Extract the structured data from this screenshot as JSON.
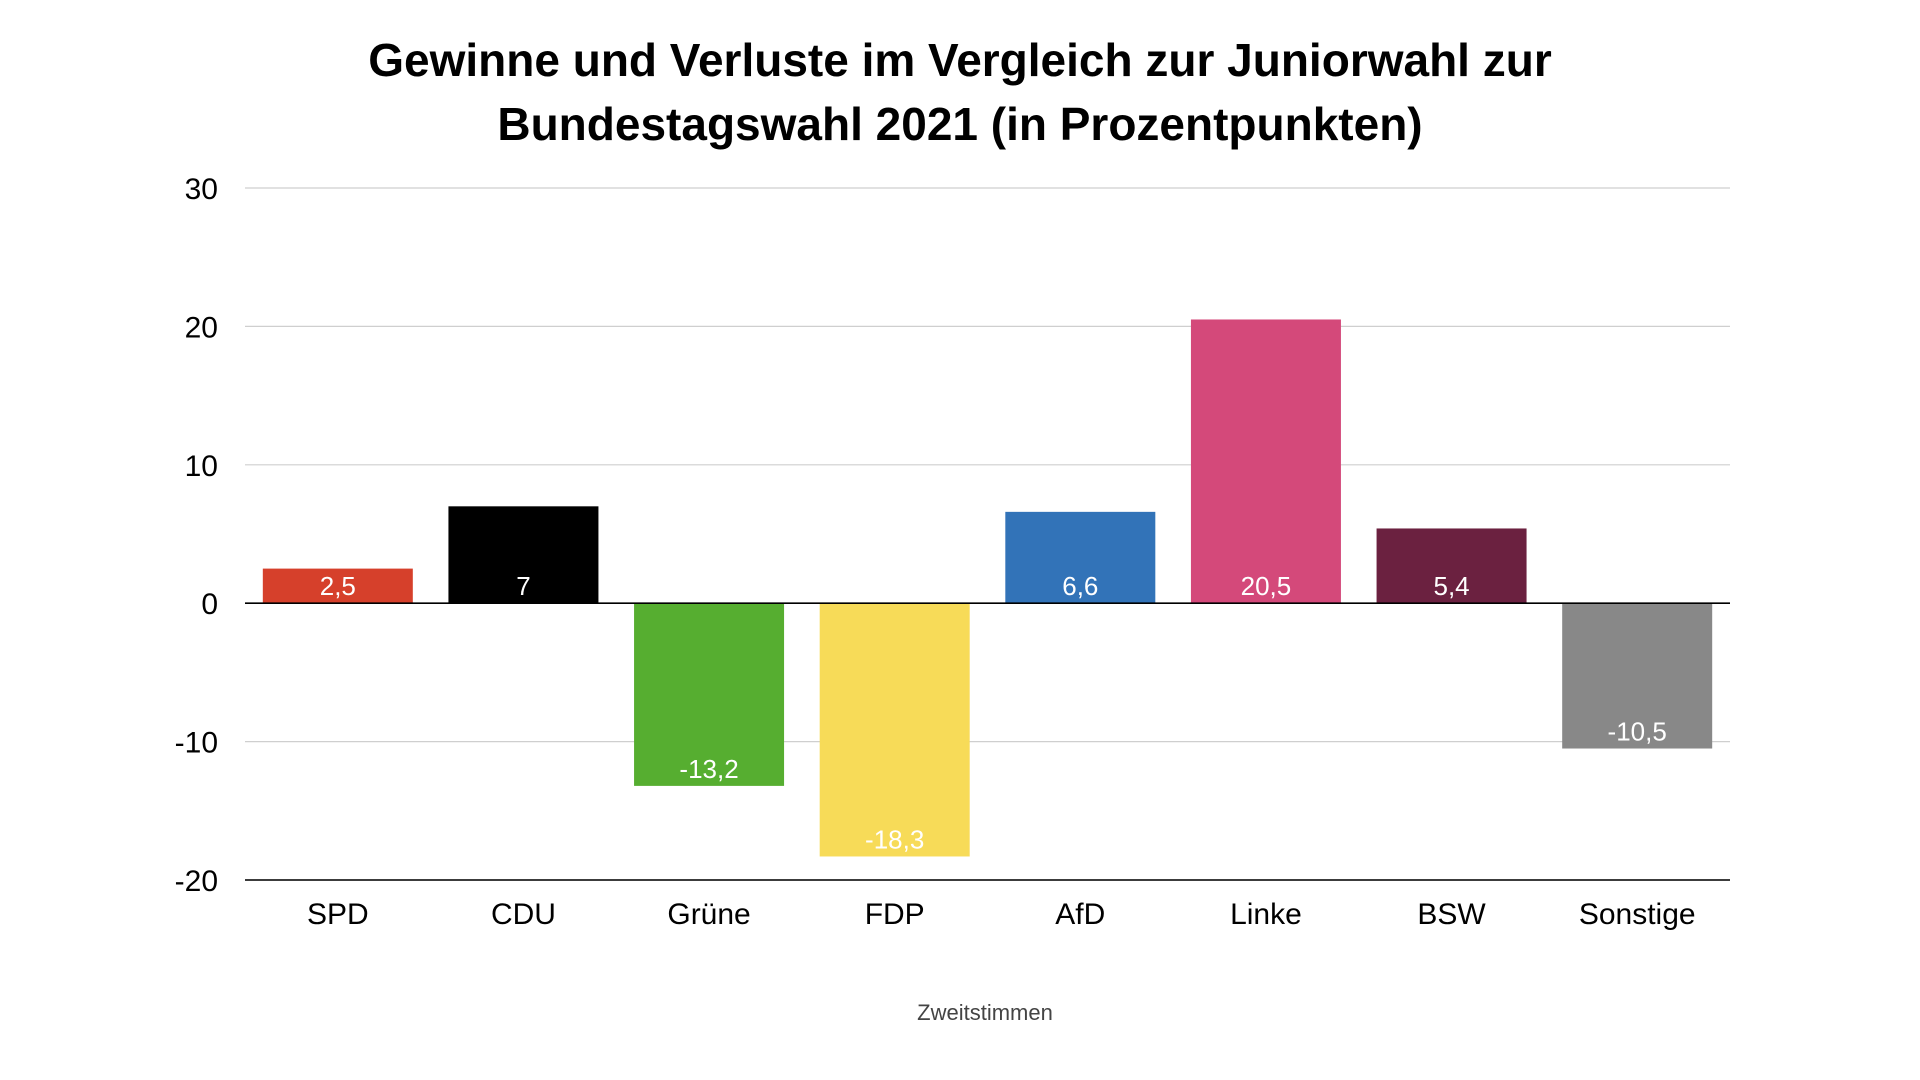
{
  "chart_data": {
    "type": "bar",
    "title": [
      "Gewinne und Verluste im Vergleich zur Juniorwahl zur",
      "Bundestagswahl 2021 (in Prozentpunkten)"
    ],
    "xlabel": "Zweitstimmen",
    "ylabel": "",
    "ylim": [
      -20,
      30
    ],
    "yticks": [
      30,
      20,
      10,
      0,
      -10,
      -20
    ],
    "grid": true,
    "legend": "none",
    "categories": [
      "SPD",
      "CDU",
      "Grüne",
      "FDP",
      "AfD",
      "Linke",
      "BSW",
      "Sonstige"
    ],
    "values": [
      2.5,
      7,
      -13.2,
      -18.3,
      6.6,
      20.5,
      5.4,
      -10.5
    ],
    "value_labels": [
      "2,5",
      "7",
      "-13,2",
      "-18,3",
      "6,6",
      "20,5",
      "5,4",
      "-10,5"
    ],
    "colors": [
      "#d6402b",
      "#000000",
      "#56ae30",
      "#f7db58",
      "#3273b8",
      "#d4497a",
      "#6b2140",
      "#888888"
    ]
  }
}
